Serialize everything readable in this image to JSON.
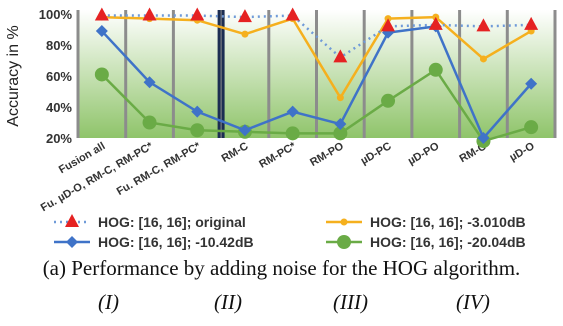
{
  "chart_data": {
    "type": "line",
    "ylabel": "Accuracy in %",
    "ylim": [
      20,
      100
    ],
    "yticks": [
      "20%",
      "40%",
      "60%",
      "80%",
      "100%"
    ],
    "categories": [
      "Fusion all",
      "Fu. µD-O, RM-C, RM-PC*",
      "Fu. RM-C, RM-PC*",
      "RM-C",
      "RM-PC*",
      "RM-PO",
      "µD-PC",
      "µD-PO",
      "RM-O",
      "µD-O"
    ],
    "separator_after_category": "Fu. RM-C, RM-PC*",
    "grid": "vertical",
    "legend_position": "bottom",
    "series": [
      {
        "name": "HOG: [16, 16]; original",
        "color": "#e52222",
        "line": "dotted",
        "marker": "triangle",
        "values": [
          99,
          99,
          99,
          98,
          99,
          72,
          92,
          93,
          92,
          93
        ]
      },
      {
        "name": "HOG: [16, 16]; -3.010dB",
        "color": "#f5b01e",
        "line": "solid",
        "marker": "circle-small",
        "values": [
          98,
          97,
          96,
          87,
          97,
          46,
          97,
          98,
          71,
          89
        ]
      },
      {
        "name": "HOG: [16, 16]; -10.42dB",
        "color": "#3f73c8",
        "line": "solid",
        "marker": "diamond",
        "values": [
          89,
          56,
          37,
          25,
          37,
          29,
          88,
          92,
          20,
          55
        ]
      },
      {
        "name": "HOG: [16, 16]; -20.04dB",
        "color": "#6aab46",
        "line": "solid",
        "marker": "circle",
        "values": [
          61,
          30,
          25,
          24,
          23,
          23,
          44,
          64,
          18,
          27
        ]
      }
    ]
  },
  "caption": "(a) Performance by adding noise for the HOG algorithm.",
  "groups": [
    "(I)",
    "(II)",
    "(III)",
    "(IV)"
  ]
}
